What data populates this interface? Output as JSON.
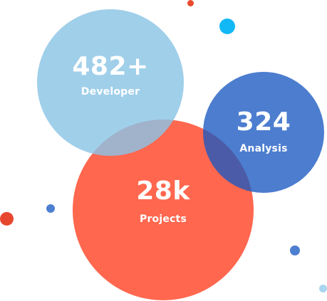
{
  "stats": [
    {
      "value": "482+",
      "label": "Developer",
      "color": "#8BC4E5"
    },
    {
      "value": "324",
      "label": "Analysis",
      "color": "#1959C1"
    },
    {
      "value": "28k",
      "label": "Projects",
      "color": "#FF563C"
    }
  ],
  "decorative_dots": [
    {
      "color": "#EA4A2E"
    },
    {
      "color": "#12B8F6"
    },
    {
      "color": "#E7472E"
    },
    {
      "color": "#4D7FD0"
    },
    {
      "color": "#4D7FD0"
    },
    {
      "color": "#A9D6EF"
    }
  ]
}
